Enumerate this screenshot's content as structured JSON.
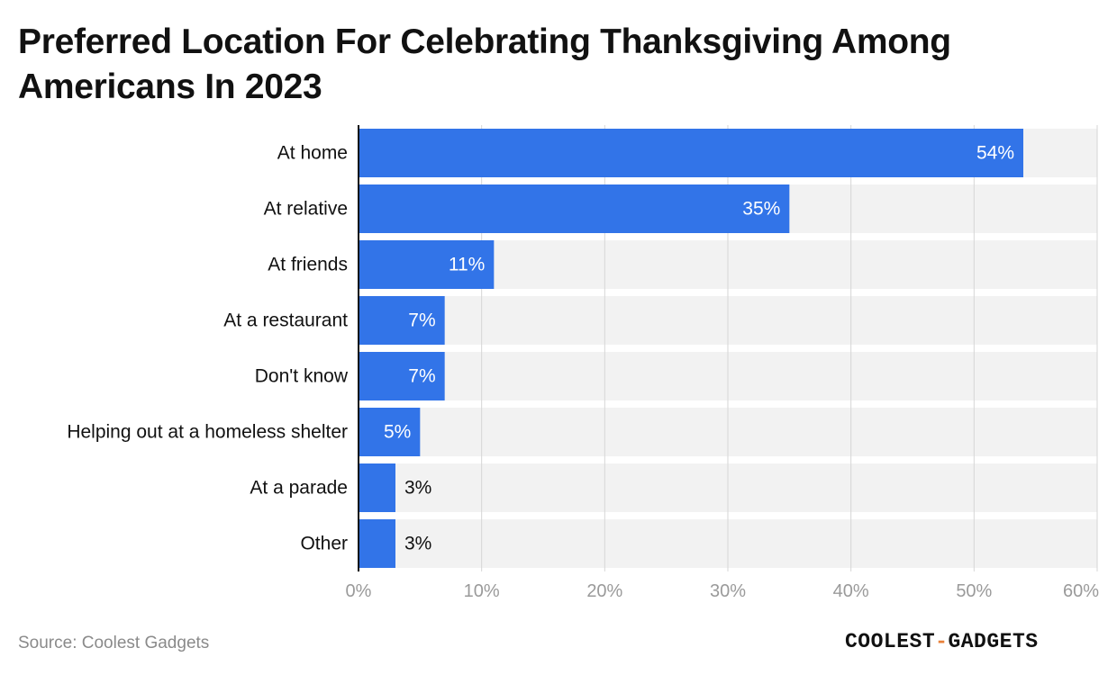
{
  "title": "Preferred Location For Celebrating Thanksgiving Among Americans In 2023",
  "source": "Source: Coolest Gadgets",
  "logo": {
    "part1": "COOLEST",
    "separator": "-",
    "part2": "GADGETS"
  },
  "colors": {
    "bar": "#3274e8",
    "band": "#f2f2f2",
    "grid": "#d6d6d6",
    "axis": "#111111",
    "tick_text": "#9a9a9a",
    "label_text": "#111111",
    "accent": "#e8803a"
  },
  "chart_data": {
    "type": "bar",
    "orientation": "horizontal",
    "categories": [
      "At home",
      "At relative",
      "At friends",
      "At a restaurant",
      "Don't know",
      "Helping out at a homeless shelter",
      "At a parade",
      "Other"
    ],
    "values": [
      54,
      35,
      11,
      7,
      7,
      5,
      3,
      3
    ],
    "value_labels": [
      "54%",
      "35%",
      "11%",
      "7%",
      "7%",
      "5%",
      "3%",
      "3%"
    ],
    "xlim": [
      0,
      60
    ],
    "xticks": [
      0,
      10,
      20,
      30,
      40,
      50,
      60
    ],
    "xtick_labels": [
      "0%",
      "10%",
      "20%",
      "30%",
      "40%",
      "50%",
      "60%"
    ],
    "grid": true,
    "legend": "none"
  }
}
